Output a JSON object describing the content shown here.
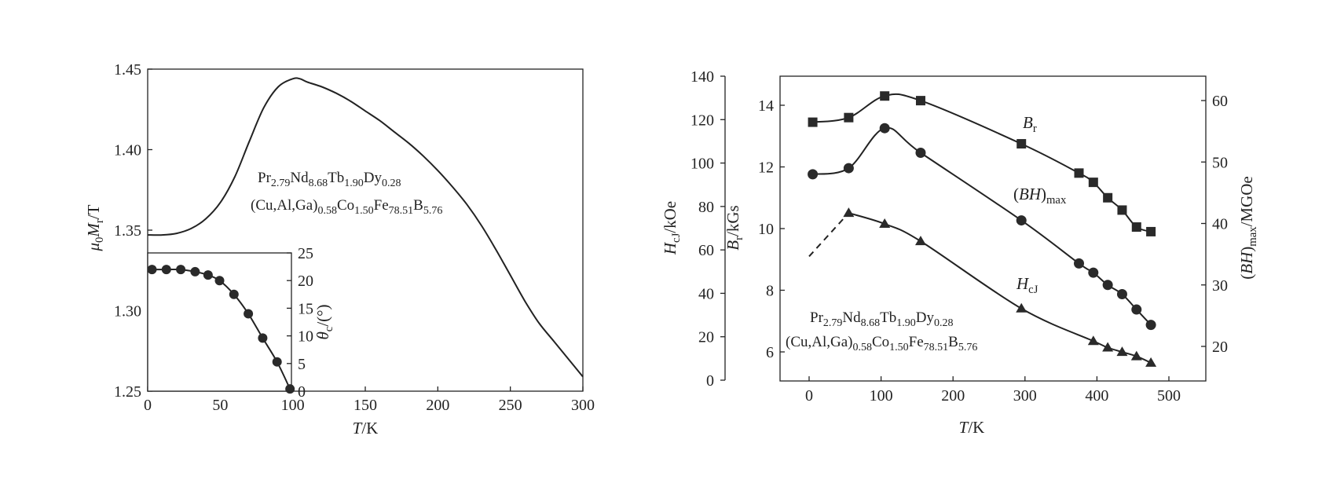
{
  "chart_data": [
    {
      "type": "line",
      "xlabel": [
        "T",
        "/K"
      ],
      "ylabel": [
        "μ",
        "0",
        "M",
        "r",
        "/T"
      ],
      "xlim": [
        0,
        300
      ],
      "ylim": [
        1.25,
        1.45
      ],
      "xticks": [
        "0",
        "50",
        "100",
        "150",
        "200",
        "250",
        "300"
      ],
      "yticks": [
        "1.25",
        "1.30",
        "1.35",
        "1.40",
        "1.45"
      ],
      "composition": [
        [
          [
            "Pr",
            "n"
          ],
          [
            "2.79",
            "s"
          ],
          [
            "Nd",
            "n"
          ],
          [
            "8.68",
            "s"
          ],
          [
            "Tb",
            "n"
          ],
          [
            "1.90",
            "s"
          ],
          [
            "Dy",
            "n"
          ],
          [
            "0.28",
            "s"
          ]
        ],
        [
          [
            "(Cu,Al,Ga)",
            "n"
          ],
          [
            "0.58",
            "s"
          ],
          [
            "Co",
            "n"
          ],
          [
            "1.50",
            "s"
          ],
          [
            "Fe",
            "n"
          ],
          [
            "78.51",
            "s"
          ],
          [
            "B",
            "n"
          ],
          [
            "5.76",
            "s"
          ]
        ]
      ],
      "series": [
        {
          "x": [
            0,
            10,
            20,
            30,
            40,
            50,
            60,
            70,
            80,
            90,
            100,
            105,
            110,
            120,
            130,
            140,
            150,
            160,
            170,
            180,
            190,
            200,
            210,
            220,
            230,
            240,
            250,
            260,
            270,
            280,
            290,
            300
          ],
          "values": [
            1.347,
            1.347,
            1.348,
            1.351,
            1.357,
            1.367,
            1.383,
            1.405,
            1.426,
            1.439,
            1.444,
            1.444,
            1.442,
            1.439,
            1.435,
            1.43,
            1.424,
            1.418,
            1.411,
            1.404,
            1.396,
            1.387,
            1.377,
            1.366,
            1.353,
            1.338,
            1.322,
            1.306,
            1.292,
            1.281,
            1.27,
            1.259
          ]
        }
      ],
      "inset": {
        "type": "line",
        "ylabel": [
          "θ",
          "c",
          "/(°)"
        ],
        "xlim": [
          0,
          100
        ],
        "ylim": [
          0,
          25
        ],
        "yticks": [
          "0",
          "5",
          "10",
          "15",
          "20",
          "25"
        ],
        "x": [
          3,
          13,
          23,
          33,
          42,
          50,
          60,
          70,
          80,
          90,
          99
        ],
        "values": [
          22,
          22,
          22,
          21.6,
          21,
          20,
          17.5,
          14,
          9.6,
          5.3,
          0.4
        ]
      }
    },
    {
      "type": "scatter",
      "xlabel": [
        "T",
        "/K"
      ],
      "xlim": [
        0,
        500
      ],
      "xticks": [
        "0",
        "100",
        "200",
        "300",
        "400",
        "500"
      ],
      "axes": [
        {
          "side": "left-outer",
          "label": [
            "H",
            "cJ",
            "/kOe"
          ],
          "ylim": [
            0,
            140
          ],
          "ticks": [
            "0",
            "20",
            "40",
            "60",
            "80",
            "100",
            "120",
            "140"
          ]
        },
        {
          "side": "left-inner",
          "label": [
            "B",
            "r",
            "/kGs"
          ],
          "ylim": [
            6,
            14
          ],
          "ticks": [
            "6",
            "8",
            "10",
            "12",
            "14"
          ]
        },
        {
          "side": "right",
          "label": [
            "(",
            "BH",
            ")",
            "max",
            "/MGOe"
          ],
          "ylim": [
            20,
            60
          ],
          "ticks": [
            "20",
            "30",
            "40",
            "50",
            "60"
          ]
        }
      ],
      "composition": [
        [
          [
            "Pr",
            "n"
          ],
          [
            "2.79",
            "s"
          ],
          [
            "Nd",
            "n"
          ],
          [
            "8.68",
            "s"
          ],
          [
            "Tb",
            "n"
          ],
          [
            "1.90",
            "s"
          ],
          [
            "Dy",
            "n"
          ],
          [
            "0.28",
            "s"
          ]
        ],
        [
          [
            "(Cu,Al,Ga)",
            "n"
          ],
          [
            "0.58",
            "s"
          ],
          [
            "Co",
            "n"
          ],
          [
            "1.50",
            "s"
          ],
          [
            "Fe",
            "n"
          ],
          [
            "78.51",
            "s"
          ],
          [
            "B",
            "n"
          ],
          [
            "5.76",
            "s"
          ]
        ]
      ],
      "series": [
        {
          "label": [
            "B",
            "r"
          ],
          "axis": "B",
          "marker": "square",
          "x": [
            5,
            55,
            105,
            155,
            295,
            375,
            395,
            415,
            435,
            455,
            475
          ],
          "values": [
            13.45,
            13.6,
            14.3,
            14.15,
            12.75,
            11.8,
            11.5,
            11.0,
            10.6,
            10.05,
            9.9
          ]
        },
        {
          "label": [
            "(",
            "BH",
            ")",
            "max"
          ],
          "axis": "BH",
          "marker": "circle",
          "x": [
            5,
            55,
            105,
            155,
            295,
            375,
            395,
            415,
            435,
            455,
            475
          ],
          "values": [
            48,
            49,
            55.5,
            51.5,
            40.5,
            33.5,
            32,
            30,
            28.5,
            26,
            23.5
          ]
        },
        {
          "label": [
            "H",
            "cJ"
          ],
          "axis": "H",
          "marker": "triangle",
          "dashed_extrapolation": [
            0,
            57
          ],
          "x": [
            55,
            105,
            155,
            295,
            395,
            415,
            435,
            455,
            475
          ],
          "values": [
            77,
            72,
            64,
            33,
            18,
            15,
            13,
            11,
            8
          ]
        }
      ]
    }
  ]
}
